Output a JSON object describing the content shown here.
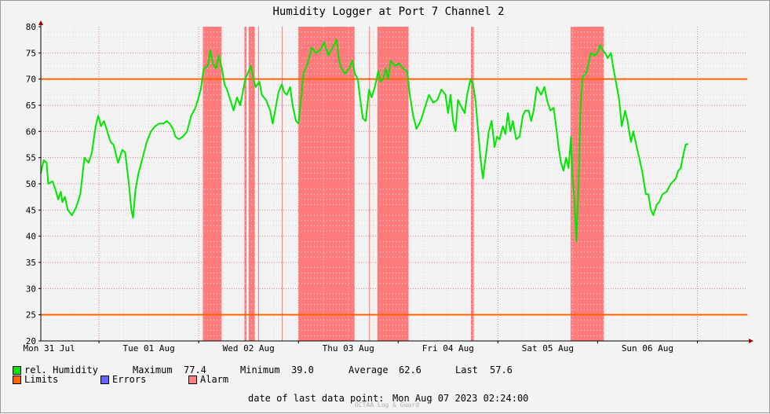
{
  "chart_data": {
    "type": "line",
    "title": "Humidity Logger at Port 7 Channel 2",
    "ylim": [
      20,
      80
    ],
    "y_ticks": [
      20,
      25,
      30,
      35,
      40,
      45,
      50,
      55,
      60,
      65,
      70,
      75,
      80
    ],
    "x_range_hours": [
      0,
      170
    ],
    "x_tick_labels": [
      "Mon 31 Jul",
      "Tue 01 Aug",
      "Wed 02 Aug",
      "Thu 03 Aug",
      "Fri 04 Aug",
      "Sat 05 Aug",
      "Sun 06 Aug"
    ],
    "limits": [
      25,
      70
    ],
    "alarm_bands_hours": [
      [
        39.0,
        43.5
      ],
      [
        49.0,
        49.5
      ],
      [
        50.0,
        51.5
      ],
      [
        52.3,
        52.5
      ],
      [
        58.0,
        58.2
      ],
      [
        62.0,
        75.5
      ],
      [
        79.0,
        79.2
      ],
      [
        81.0,
        88.5
      ],
      [
        103.5,
        104.2
      ],
      [
        127.5,
        135.5
      ]
    ],
    "series": [
      {
        "name": "rel. Humidity",
        "color": "#00e600",
        "points": [
          [
            0,
            52
          ],
          [
            0.7,
            54.5
          ],
          [
            1.4,
            54
          ],
          [
            1.8,
            50
          ],
          [
            2.8,
            50.5
          ],
          [
            3.5,
            49
          ],
          [
            4.2,
            47
          ],
          [
            4.8,
            48.5
          ],
          [
            5.2,
            46.5
          ],
          [
            5.8,
            47.5
          ],
          [
            6.5,
            45
          ],
          [
            7.5,
            44
          ],
          [
            8.5,
            45.5
          ],
          [
            9.5,
            48
          ],
          [
            10.5,
            55
          ],
          [
            11.5,
            54
          ],
          [
            12.3,
            56
          ],
          [
            13.2,
            61
          ],
          [
            13.8,
            63
          ],
          [
            14.5,
            61
          ],
          [
            15.2,
            62
          ],
          [
            16,
            60
          ],
          [
            16.8,
            58
          ],
          [
            17.5,
            57.5
          ],
          [
            18.6,
            54
          ],
          [
            19.6,
            56.5
          ],
          [
            20.3,
            56
          ],
          [
            21.2,
            50
          ],
          [
            21.8,
            45
          ],
          [
            22.2,
            43.5
          ],
          [
            22.8,
            49
          ],
          [
            23.5,
            52
          ],
          [
            24.5,
            55
          ],
          [
            25.5,
            58
          ],
          [
            26.5,
            60
          ],
          [
            27.5,
            61
          ],
          [
            28.5,
            61.5
          ],
          [
            29.5,
            61.5
          ],
          [
            30.3,
            62
          ],
          [
            31,
            61.5
          ],
          [
            31.8,
            60.5
          ],
          [
            32.4,
            59
          ],
          [
            33.2,
            58.5
          ],
          [
            34.2,
            59
          ],
          [
            35.2,
            60
          ],
          [
            36.2,
            63
          ],
          [
            37.2,
            64.5
          ],
          [
            37.8,
            66
          ],
          [
            38.5,
            68
          ],
          [
            39.2,
            72
          ],
          [
            40.2,
            72.5
          ],
          [
            40.8,
            75.5
          ],
          [
            41.4,
            73
          ],
          [
            42.2,
            72
          ],
          [
            42.8,
            74.5
          ],
          [
            43.6,
            72
          ],
          [
            44.2,
            69
          ],
          [
            44.8,
            68
          ],
          [
            45.6,
            66
          ],
          [
            46.4,
            64
          ],
          [
            47.2,
            66.5
          ],
          [
            48,
            65
          ],
          [
            48.6,
            67.5
          ],
          [
            49.2,
            70
          ],
          [
            50,
            71.5
          ],
          [
            50.5,
            72.5
          ],
          [
            51.2,
            70
          ],
          [
            51.7,
            68.5
          ],
          [
            52.6,
            69.5
          ],
          [
            53.2,
            67
          ],
          [
            54.2,
            66
          ],
          [
            55.2,
            64
          ],
          [
            55.8,
            61.5
          ],
          [
            56.4,
            64
          ],
          [
            57.2,
            67.5
          ],
          [
            58,
            69
          ],
          [
            58.6,
            67.5
          ],
          [
            59.2,
            67
          ],
          [
            60,
            68.5
          ],
          [
            60.6,
            65
          ],
          [
            61.4,
            62
          ],
          [
            62,
            61.5
          ],
          [
            62.6,
            66
          ],
          [
            63.2,
            71
          ],
          [
            64.2,
            73
          ],
          [
            65.2,
            76
          ],
          [
            66.2,
            75
          ],
          [
            67.2,
            75.5
          ],
          [
            68.2,
            77
          ],
          [
            69.2,
            74.5
          ],
          [
            70.2,
            76
          ],
          [
            71.2,
            77.5
          ],
          [
            71.8,
            73.5
          ],
          [
            72.4,
            72
          ],
          [
            73.2,
            71
          ],
          [
            74.2,
            72
          ],
          [
            75,
            73.5
          ],
          [
            75.6,
            71
          ],
          [
            76.3,
            70
          ],
          [
            76.8,
            66.5
          ],
          [
            77.5,
            62.5
          ],
          [
            78.2,
            62
          ],
          [
            79,
            68
          ],
          [
            79.6,
            66.5
          ],
          [
            80.4,
            68.5
          ],
          [
            81.2,
            71.5
          ],
          [
            81.8,
            69.5
          ],
          [
            82.4,
            70
          ],
          [
            83,
            72
          ],
          [
            83.6,
            70
          ],
          [
            84.2,
            73.5
          ],
          [
            85.2,
            72.5
          ],
          [
            86.2,
            73
          ],
          [
            87.2,
            72
          ],
          [
            88.2,
            71.5
          ],
          [
            88.8,
            67
          ],
          [
            89.6,
            63
          ],
          [
            90.4,
            60.5
          ],
          [
            91.4,
            62
          ],
          [
            92.4,
            64.5
          ],
          [
            93.4,
            67
          ],
          [
            94.4,
            65.5
          ],
          [
            95.4,
            66
          ],
          [
            96.4,
            68
          ],
          [
            97.4,
            67
          ],
          [
            98,
            63.5
          ],
          [
            98.6,
            67
          ],
          [
            99.2,
            62
          ],
          [
            99.8,
            60
          ],
          [
            100.4,
            66
          ],
          [
            101,
            65
          ],
          [
            102,
            63.5
          ],
          [
            102.6,
            67
          ],
          [
            103.4,
            70
          ],
          [
            104,
            69
          ],
          [
            104.6,
            66
          ],
          [
            105.2,
            60.5
          ],
          [
            105.8,
            55
          ],
          [
            106.4,
            51
          ],
          [
            107.2,
            56
          ],
          [
            107.8,
            60
          ],
          [
            108.5,
            62
          ],
          [
            109.2,
            57
          ],
          [
            109.8,
            59
          ],
          [
            110.4,
            58.5
          ],
          [
            111.2,
            61
          ],
          [
            111.8,
            59.5
          ],
          [
            112.4,
            63.5
          ],
          [
            113,
            60
          ],
          [
            113.6,
            62
          ],
          [
            114.4,
            58.5
          ],
          [
            115.2,
            59
          ],
          [
            116,
            63
          ],
          [
            116.6,
            64
          ],
          [
            117.4,
            64
          ],
          [
            118,
            62
          ],
          [
            118.6,
            64
          ],
          [
            119.4,
            68.5
          ],
          [
            120.4,
            67
          ],
          [
            121.2,
            68.5
          ],
          [
            121.8,
            66
          ],
          [
            122.6,
            64
          ],
          [
            123.4,
            64.5
          ],
          [
            124,
            61
          ],
          [
            124.6,
            57
          ],
          [
            125.2,
            54
          ],
          [
            125.8,
            52.5
          ],
          [
            126.4,
            55
          ],
          [
            127,
            53
          ],
          [
            127.6,
            59
          ],
          [
            128,
            51
          ],
          [
            128.4,
            47
          ],
          [
            128.9,
            39
          ],
          [
            129.4,
            50
          ],
          [
            129.9,
            65
          ],
          [
            130.4,
            70.5
          ],
          [
            131.2,
            71
          ],
          [
            131.8,
            73
          ],
          [
            132.4,
            75
          ],
          [
            133.2,
            74.5
          ],
          [
            134,
            75
          ],
          [
            134.6,
            76.5
          ],
          [
            135.2,
            75.5
          ],
          [
            135.8,
            75
          ],
          [
            136.4,
            74
          ],
          [
            137.2,
            75
          ],
          [
            137.8,
            72
          ],
          [
            138.4,
            69.5
          ],
          [
            139.2,
            66
          ],
          [
            139.8,
            61
          ],
          [
            140.6,
            64
          ],
          [
            141.2,
            62
          ],
          [
            142,
            58
          ],
          [
            142.6,
            60
          ],
          [
            143.4,
            57
          ],
          [
            144,
            55
          ],
          [
            144.8,
            52
          ],
          [
            145.6,
            48
          ],
          [
            146.2,
            48
          ],
          [
            146.8,
            45
          ],
          [
            147.4,
            44
          ],
          [
            148.2,
            46
          ],
          [
            148.8,
            46.5
          ],
          [
            149.6,
            48
          ],
          [
            150.6,
            48.5
          ],
          [
            151.6,
            50
          ],
          [
            152.8,
            51
          ],
          [
            153.4,
            52.5
          ],
          [
            154,
            53
          ],
          [
            154.6,
            55.5
          ],
          [
            155.2,
            57.5
          ],
          [
            155.8,
            57.6
          ]
        ]
      }
    ],
    "legend": [
      {
        "name": "rel. Humidity",
        "color": "#00e600"
      },
      {
        "name": "Limits",
        "color": "#ff6400"
      },
      {
        "name": "Errors",
        "color": "#6464ff"
      },
      {
        "name": "Alarm",
        "color": "#ff8080"
      }
    ]
  },
  "stats": {
    "maximum_label": "Maximum",
    "maximum_value": "77.4",
    "minimum_label": "Minimum",
    "minimum_value": "39.0",
    "average_label": "Average",
    "average_value": "62.6",
    "last_label": "Last",
    "last_value": "57.6"
  },
  "footer": {
    "last_point_label": "date of last data point:",
    "last_point_value": "Mon Aug 07 2023 02:24:00",
    "watermark": "OCTAA Log & Guard"
  }
}
